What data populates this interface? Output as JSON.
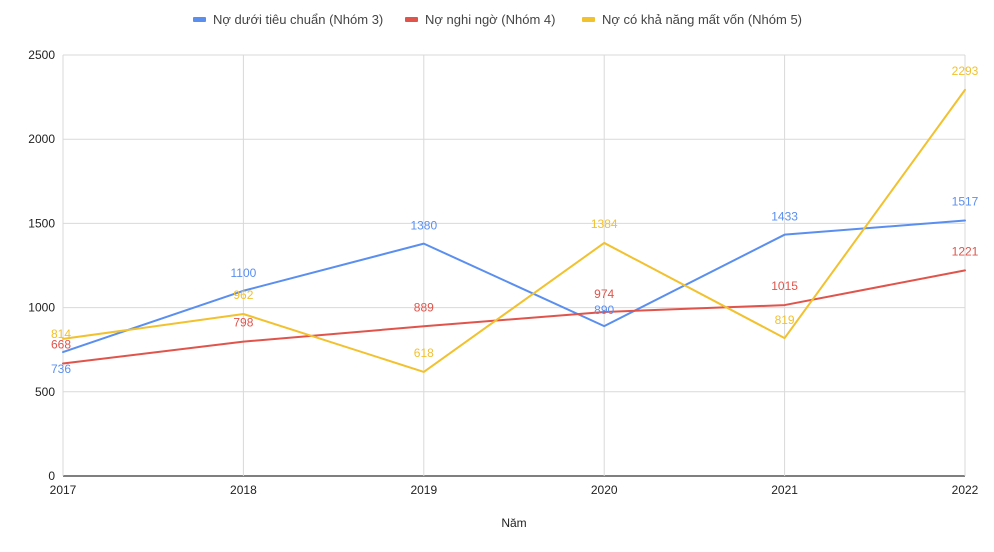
{
  "chart_data": {
    "type": "line",
    "title": "",
    "xlabel": "Năm",
    "ylabel": "",
    "categories": [
      "2017",
      "2018",
      "2019",
      "2020",
      "2021",
      "2022"
    ],
    "ylim": [
      0,
      2500
    ],
    "yticks": [
      0,
      500,
      1000,
      1500,
      2000,
      2500
    ],
    "grid": true,
    "legend_position": "top",
    "series": [
      {
        "name": "Nợ dưới tiêu chuẩn (Nhóm 3)",
        "color": "#5a8ff0",
        "values": [
          736,
          1100,
          1380,
          890,
          1433,
          1517
        ]
      },
      {
        "name": "Nợ nghi ngờ (Nhóm 4)",
        "color": "#e0544b",
        "values": [
          668,
          798,
          889,
          974,
          1015,
          1221
        ]
      },
      {
        "name": "Nợ có khả năng mất vốn (Nhóm 5)",
        "color": "#f2c12e",
        "values": [
          814,
          962,
          618,
          1384,
          819,
          2293
        ]
      }
    ]
  }
}
